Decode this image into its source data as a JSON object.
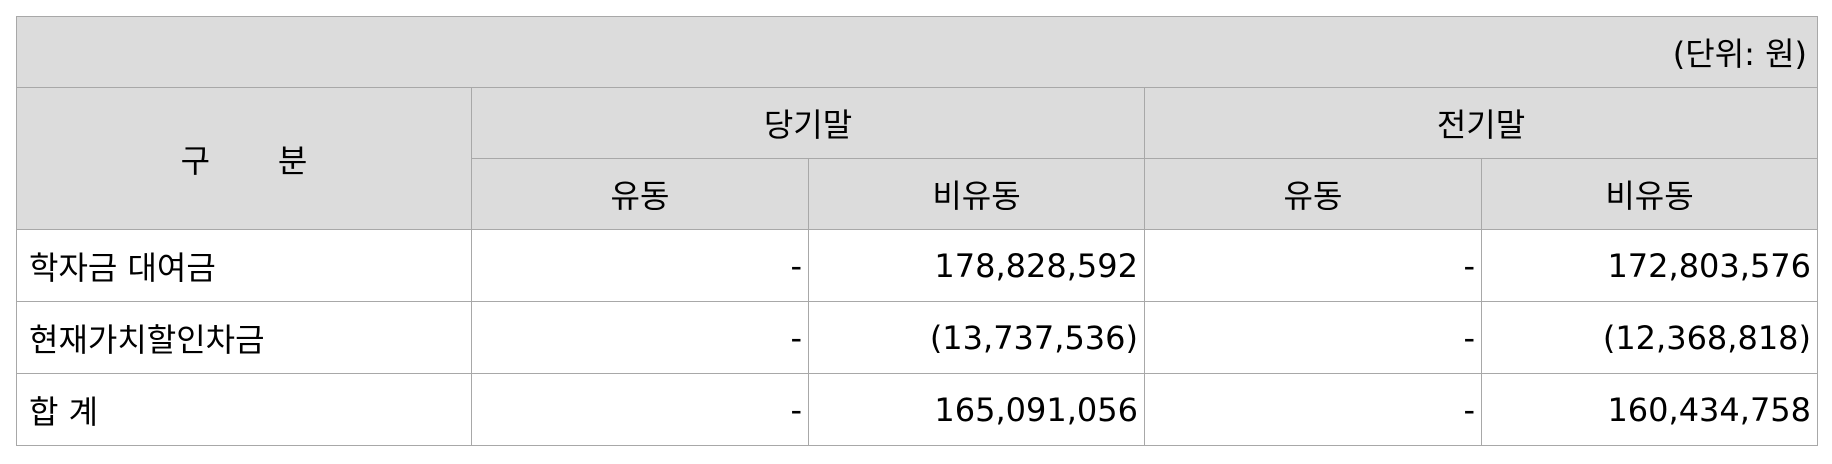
{
  "unit_label": "(단위: 원)",
  "header": {
    "category": "구 분",
    "groups": [
      "당기말",
      "전기말"
    ],
    "sub": [
      "유동",
      "비유동",
      "유동",
      "비유동"
    ]
  },
  "rows": [
    {
      "label": "학자금 대여금",
      "cells": [
        "-",
        "178,828,592",
        "-",
        "172,803,576"
      ]
    },
    {
      "label": "현재가치할인차금",
      "cells": [
        "-",
        "(13,737,536)",
        "-",
        "(12,368,818)"
      ]
    },
    {
      "label": "합 계",
      "cells": [
        "-",
        "165,091,056",
        "-",
        "160,434,758"
      ]
    }
  ]
}
